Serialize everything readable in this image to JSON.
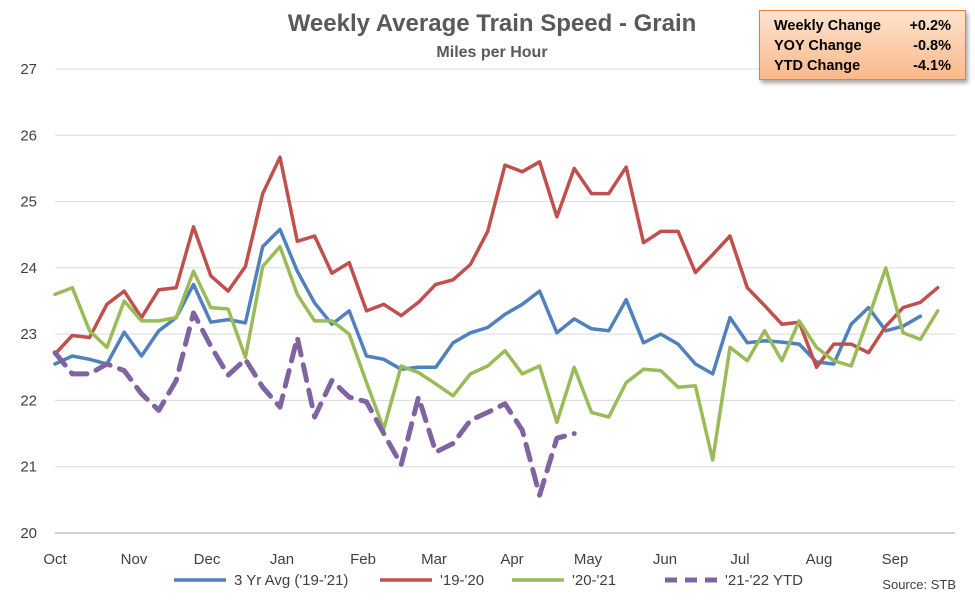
{
  "chart_data": {
    "type": "line",
    "title": "Weekly Average Train Speed - Grain",
    "subtitle": "Miles per Hour",
    "ylim": [
      20,
      27
    ],
    "y_ticks": [
      "20",
      "21",
      "22",
      "23",
      "24",
      "25",
      "26",
      "27"
    ],
    "x_ticks": [
      "Oct",
      "Nov",
      "Dec",
      "Jan",
      "Feb",
      "Mar",
      "Apr",
      "May",
      "Jun",
      "Jul",
      "Aug",
      "Sep"
    ],
    "weeks": 53,
    "grid": "horizontal",
    "legend_position": "bottom",
    "series": [
      {
        "name": "3 Yr Avg ('19-'21)",
        "color": "#4f81bd",
        "dash": false,
        "values": [
          22.55,
          22.67,
          22.62,
          22.55,
          23.03,
          22.67,
          23.05,
          23.25,
          23.75,
          23.18,
          23.22,
          23.17,
          24.32,
          24.58,
          23.95,
          23.47,
          23.15,
          23.35,
          22.67,
          22.62,
          22.47,
          22.5,
          22.5,
          22.87,
          23.02,
          23.1,
          23.3,
          23.45,
          23.65,
          23.02,
          23.23,
          23.08,
          23.05,
          23.52,
          22.87,
          23.0,
          22.85,
          22.55,
          22.4,
          23.25,
          22.87,
          22.9,
          22.88,
          22.85,
          22.58,
          22.55,
          23.15,
          23.4,
          23.05,
          23.12,
          23.27
        ]
      },
      {
        "name": "'19-'20",
        "color": "#c0504d",
        "dash": false,
        "values": [
          22.7,
          22.98,
          22.95,
          23.45,
          23.65,
          23.25,
          23.67,
          23.7,
          24.62,
          23.88,
          23.65,
          24.02,
          25.12,
          25.67,
          24.4,
          24.48,
          23.92,
          24.08,
          23.35,
          23.45,
          23.28,
          23.48,
          23.75,
          23.82,
          24.05,
          24.55,
          25.55,
          25.45,
          25.6,
          24.77,
          25.5,
          25.12,
          25.12,
          25.52,
          24.38,
          24.55,
          24.55,
          23.93,
          24.2,
          24.48,
          23.7,
          23.43,
          23.15,
          23.18,
          22.5,
          22.85,
          22.85,
          22.72,
          23.12,
          23.4,
          23.48,
          23.7
        ]
      },
      {
        "name": "'20-'21",
        "color": "#9bbb59",
        "dash": false,
        "values": [
          23.6,
          23.7,
          23.05,
          22.8,
          23.5,
          23.2,
          23.2,
          23.25,
          23.95,
          23.4,
          23.38,
          22.65,
          24.02,
          24.32,
          23.6,
          23.2,
          23.2,
          23.0,
          22.27,
          21.57,
          22.52,
          22.42,
          22.25,
          22.07,
          22.4,
          22.52,
          22.75,
          22.4,
          22.52,
          21.67,
          22.5,
          21.82,
          21.75,
          22.27,
          22.47,
          22.45,
          22.2,
          22.22,
          21.1,
          22.8,
          22.6,
          23.05,
          22.6,
          23.2,
          22.8,
          22.6,
          22.52,
          23.25,
          24.0,
          23.02,
          22.92,
          23.35
        ]
      },
      {
        "name": "'21-'22 YTD",
        "color": "#8064a2",
        "dash": true,
        "values": [
          22.72,
          22.4,
          22.4,
          22.55,
          22.45,
          22.1,
          21.85,
          22.3,
          23.32,
          22.82,
          22.38,
          22.62,
          22.2,
          21.9,
          22.95,
          21.75,
          22.3,
          22.05,
          21.98,
          21.5,
          21.03,
          22.05,
          21.22,
          21.35,
          21.7,
          21.82,
          21.95,
          21.55,
          20.57,
          21.43,
          21.5
        ]
      }
    ]
  },
  "info_box": {
    "rows": [
      {
        "label": "Weekly Change",
        "value": "+0.2%"
      },
      {
        "label": "YOY Change",
        "value": "-0.8%"
      },
      {
        "label": "YTD Change",
        "value": "-4.1%"
      }
    ]
  },
  "source": "Source:  STB"
}
